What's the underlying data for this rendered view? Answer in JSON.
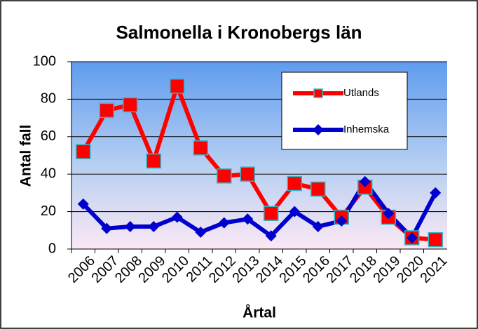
{
  "chart_data": {
    "type": "line",
    "title": "Salmonella i Kronobergs län",
    "x_label": "Årtal",
    "y_label": "Antal fall",
    "categories": [
      "2006",
      "2007",
      "2008",
      "2009",
      "2010",
      "2011",
      "2012",
      "2013",
      "2014",
      "2015",
      "2016",
      "2017",
      "2018",
      "2019",
      "2020",
      "2021"
    ],
    "series": [
      {
        "name": "Utlands",
        "color": "#ff0000",
        "marker": "square",
        "values": [
          52,
          74,
          77,
          47,
          87,
          54,
          39,
          40,
          19,
          35,
          32,
          17,
          33,
          17,
          6,
          5
        ]
      },
      {
        "name": "Inhemska",
        "color": "#0000cc",
        "marker": "diamond",
        "values": [
          24,
          11,
          12,
          12,
          17,
          9,
          14,
          16,
          7,
          20,
          12,
          15,
          36,
          19,
          6,
          30
        ]
      }
    ],
    "ylim": [
      0,
      100
    ],
    "yticks": [
      0,
      20,
      40,
      60,
      80,
      100
    ],
    "grid": true
  }
}
